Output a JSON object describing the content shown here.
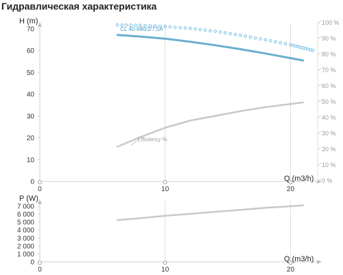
{
  "page_title": "Гидравлическая характеристика",
  "chart_data": [
    {
      "type": "line",
      "x_axis": {
        "label": "Q (m3/h)",
        "range": [
          0,
          22
        ],
        "ticks": [
          0,
          10,
          20
        ],
        "tick_labels": [
          "0",
          "10",
          "20"
        ]
      },
      "y_axis": {
        "label": "H (m)",
        "range": [
          0,
          70
        ],
        "ticks": [
          0,
          10,
          20,
          30,
          40,
          50,
          60,
          70
        ],
        "tick_labels": [
          "0",
          "10",
          "20",
          "30",
          "40",
          "50",
          "60",
          "70"
        ]
      },
      "y2_axis": {
        "label": "",
        "range": [
          0,
          100
        ],
        "ticks": [
          0,
          10,
          20,
          30,
          40,
          50,
          60,
          70,
          80,
          90,
          100
        ],
        "tick_labels": [
          "0 %",
          "10 %",
          "20 %",
          "30 %",
          "40 %",
          "50 %",
          "60 %",
          "70 %",
          "80 %",
          "90 %",
          "100 %"
        ]
      },
      "grid": {
        "vertical": true,
        "horizontal": false
      },
      "series": [
        {
          "name": "CL 40-680/2/7,5A",
          "axis": "y",
          "style": "solid",
          "color": "#6aaed0",
          "x": [
            6.2,
            8,
            10,
            12,
            14,
            16,
            18,
            20,
            21
          ],
          "y": [
            67.2,
            66.5,
            65.5,
            64.1,
            62.5,
            60.7,
            58.7,
            56.6,
            55.5
          ]
        },
        {
          "name": "",
          "axis": "y2",
          "style": "dotted",
          "color": "#77bde3",
          "x": [
            6.2,
            8,
            10,
            12,
            14,
            16,
            18,
            20,
            21,
            22
          ],
          "y": [
            99,
            98.8,
            98,
            96.8,
            95,
            92.5,
            89.6,
            86.5,
            84.5,
            82.5
          ]
        },
        {
          "name": "Efficiency %",
          "axis": "y2",
          "style": "solid",
          "color": "#c8c8c8",
          "x": [
            6.2,
            8,
            10,
            12,
            14,
            16,
            18,
            20,
            21
          ],
          "y": [
            22,
            28,
            34,
            38.5,
            41.5,
            44.5,
            47,
            49,
            50
          ]
        }
      ]
    },
    {
      "type": "line",
      "x_axis": {
        "label": "Q (m3/h)",
        "range": [
          0,
          22
        ],
        "ticks": [
          0,
          10,
          20
        ],
        "tick_labels": [
          "0",
          "10",
          "20"
        ]
      },
      "y_axis": {
        "label": "P (W)",
        "range": [
          0,
          7000
        ],
        "ticks": [
          0,
          1000,
          2000,
          3000,
          4000,
          5000,
          6000,
          7000
        ],
        "tick_labels": [
          "0",
          "1 000",
          "2 000",
          "3 000",
          "4 000",
          "5 000",
          "6 000",
          "7 000"
        ]
      },
      "grid": {
        "vertical": true,
        "horizontal": false
      },
      "series": [
        {
          "name": "",
          "axis": "y",
          "style": "solid",
          "color": "#c8c8c8",
          "x": [
            6.2,
            8,
            10,
            12,
            14,
            16,
            18,
            20,
            21
          ],
          "y": [
            5250,
            5500,
            5800,
            6050,
            6300,
            6550,
            6800,
            7000,
            7100
          ]
        }
      ]
    }
  ]
}
